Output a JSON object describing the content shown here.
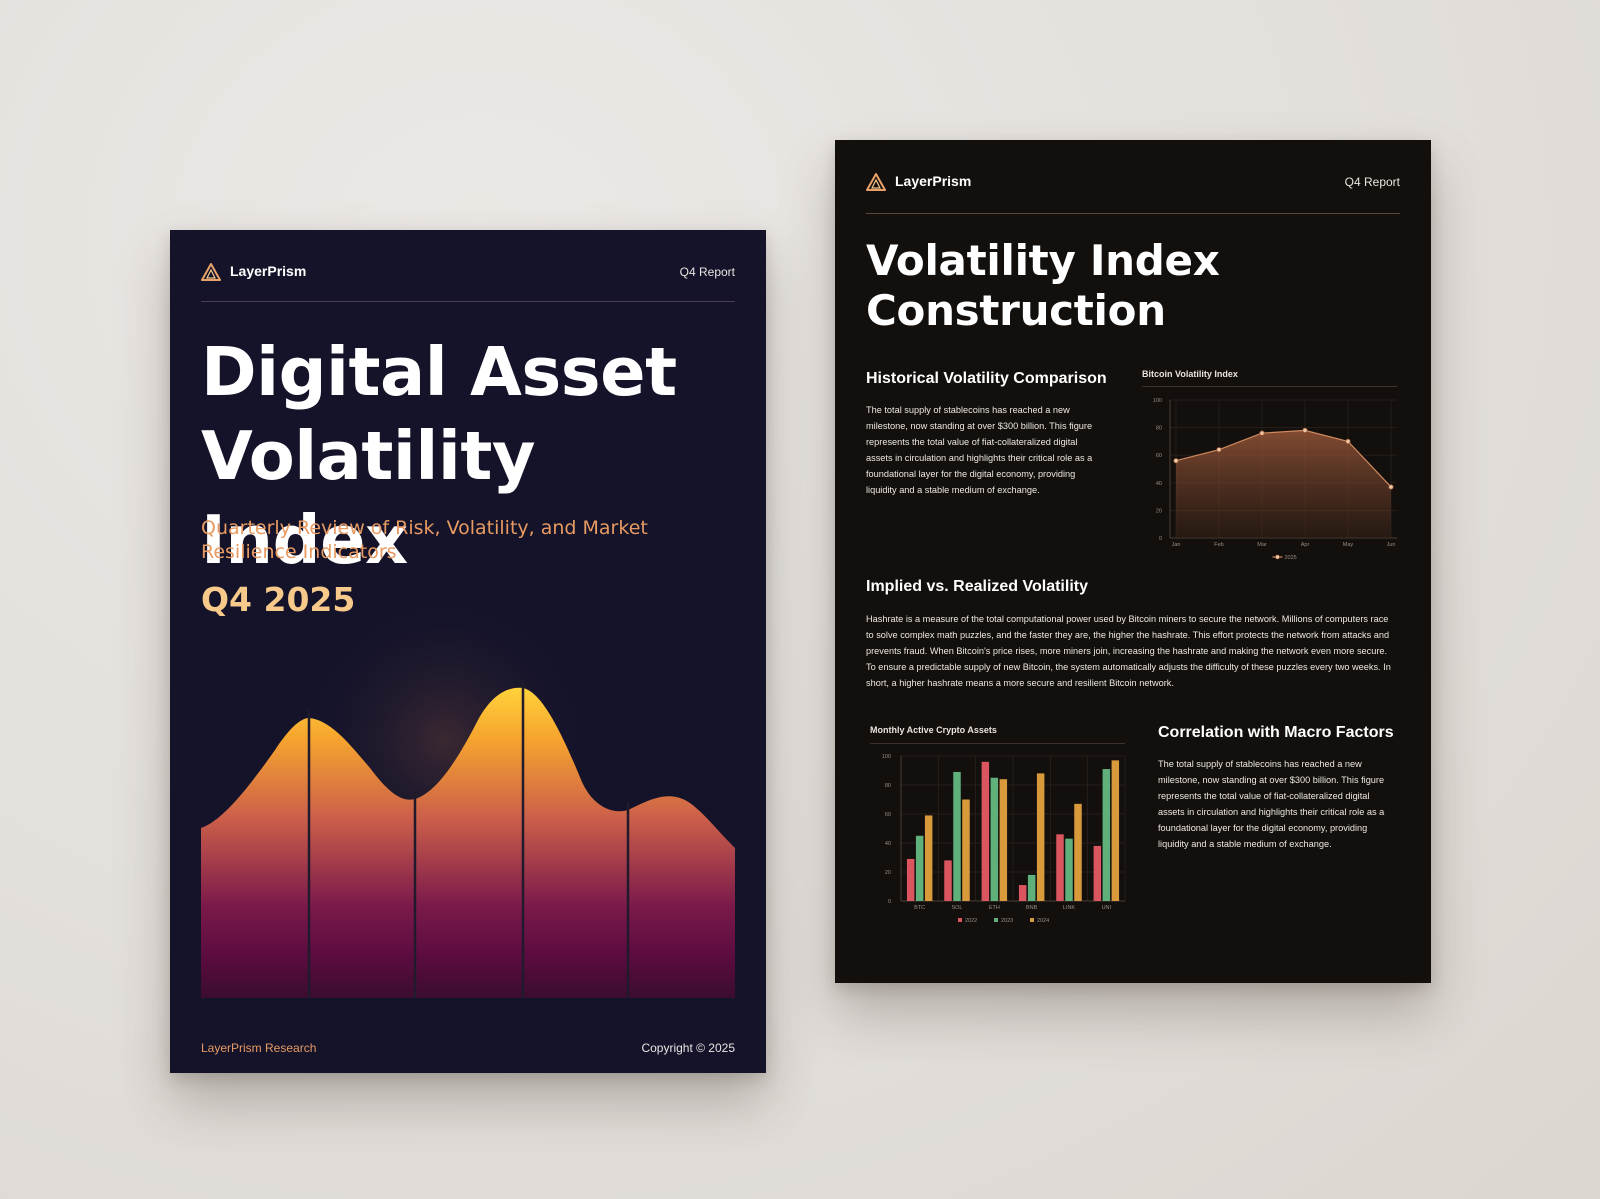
{
  "cover": {
    "brand": "LayerPrism",
    "tag": "Q4 Report",
    "title_line1": "Digital Asset",
    "title_line2": "Volatility Index",
    "subtitle": "Quarterly Review of Risk, Volatility, and Market Resilience Indicators",
    "quarter": "Q4 2025",
    "footer_left": "LayerPrism Research",
    "footer_right": "Copyright © 2025"
  },
  "inner": {
    "brand": "LayerPrism",
    "tag": "Q4 Report",
    "title_line1": "Volatility Index",
    "title_line2": "Construction",
    "section1": {
      "heading": "Historical Volatility Comparison",
      "body": "The total supply of stablecoins has reached a new milestone, now standing at over $300 billion. This figure represents the total value of fiat-collateralized digital assets in circulation and highlights their critical role as a foundational layer for the digital economy, providing liquidity and a stable medium of exchange."
    },
    "section2": {
      "heading": "Implied vs. Realized Volatility",
      "body": "Hashrate is a measure of the total computational power used by Bitcoin miners to secure the network. Millions of computers race to solve complex math puzzles, and the faster they are, the higher the hashrate. This effort protects the network from attacks and prevents fraud. When Bitcoin's price rises, more miners join, increasing the hashrate and making the network even more secure. To ensure a predictable supply of new Bitcoin, the system automatically adjusts the difficulty of these puzzles every two weeks. In short, a higher hashrate means a more secure and resilient Bitcoin network."
    },
    "section3": {
      "heading": "Correlation with Macro Factors",
      "body": "The total supply of stablecoins has reached a new milestone, now standing at over $300 billion. This figure represents the total value of fiat-collateralized digital assets in circulation and highlights their critical role as a foundational layer for the digital economy, providing liquidity and a stable medium of exchange."
    }
  },
  "colors": {
    "cover_bg": "#14132a",
    "inner_bg": "#120f0d",
    "accent_orange": "#e79a61",
    "accent_gold": "#f7c98a",
    "series_2022": "#d9555f",
    "series_2023": "#5fb07a",
    "series_2024": "#d99a3c"
  },
  "chart_data": [
    {
      "type": "area",
      "title": "Bitcoin Volatility Index",
      "categories": [
        "Jan",
        "Feb",
        "Mar",
        "Apr",
        "May",
        "Jun"
      ],
      "series": [
        {
          "name": "2025",
          "values": [
            56,
            64,
            76,
            78,
            70,
            37
          ]
        }
      ],
      "ylim": [
        0,
        100
      ],
      "yticks": [
        "100",
        "80",
        "60",
        "40",
        "20",
        "0"
      ],
      "grid": true,
      "legend": "bottom"
    },
    {
      "type": "bar",
      "title": "Monthly Active Crypto Assets",
      "categories": [
        "BTC",
        "SOL",
        "ETH",
        "BNB",
        "LINK",
        "UNI"
      ],
      "series": [
        {
          "name": "2022",
          "values": [
            29,
            28,
            96,
            11,
            46,
            38
          ]
        },
        {
          "name": "2023",
          "values": [
            45,
            89,
            85,
            18,
            43,
            91
          ]
        },
        {
          "name": "2024",
          "values": [
            59,
            70,
            84,
            88,
            67,
            97
          ]
        }
      ],
      "ylim": [
        0,
        100
      ],
      "yticks": [
        "100",
        "80",
        "60",
        "40",
        "20",
        "0"
      ],
      "grid": true,
      "legend": "bottom"
    }
  ]
}
